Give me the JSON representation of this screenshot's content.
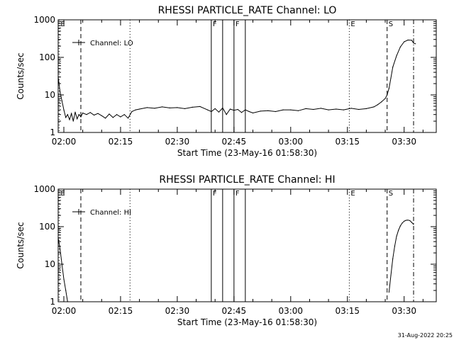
{
  "chart_data": [
    {
      "type": "line",
      "title": "RHESSI PARTICLE_RATE Channel: LO",
      "xlabel": "Start Time (23-May-16 01:58:30)",
      "ylabel": "Counts/sec",
      "yscale": "log",
      "ylim": [
        1,
        1000
      ],
      "xlim": [
        "01:58:30",
        "03:38:30"
      ],
      "xticks": [
        "02:00",
        "02:15",
        "02:30",
        "02:45",
        "03:00",
        "03:15",
        "03:30"
      ],
      "yticks": [
        "1",
        "10",
        "100",
        "1000"
      ],
      "legend": {
        "position": "top-left",
        "entries": [
          "Channel: LO"
        ]
      },
      "markers": [
        {
          "label": "E",
          "time": "01:58:45",
          "style": "dotted"
        },
        {
          "label": "",
          "time": "02:04:30",
          "style": "dashed"
        },
        {
          "label": "",
          "time": "02:17:30",
          "style": "dotted"
        },
        {
          "label": "F",
          "time": "02:39:00",
          "style": "solid"
        },
        {
          "label": "",
          "time": "02:42:00",
          "style": "solid"
        },
        {
          "label": "F",
          "time": "02:45:00",
          "style": "solid"
        },
        {
          "label": "",
          "time": "02:48:00",
          "style": "solid"
        },
        {
          "label": "E",
          "time": "03:15:30",
          "style": "dotted"
        },
        {
          "label": "S",
          "time": "03:25:30",
          "style": "dashed"
        },
        {
          "label": "",
          "time": "03:32:30",
          "style": "dashdot"
        }
      ],
      "series": [
        {
          "name": "Channel: LO",
          "points": [
            [
              "01:58:30",
              30
            ],
            [
              "01:59:00",
              12
            ],
            [
              "01:59:30",
              7
            ],
            [
              "02:00:00",
              4
            ],
            [
              "02:00:30",
              2.5
            ],
            [
              "02:01:00",
              3.0
            ],
            [
              "02:01:30",
              2.2
            ],
            [
              "02:02:00",
              3.2
            ],
            [
              "02:02:30",
              2.0
            ],
            [
              "02:03:00",
              3.5
            ],
            [
              "02:03:30",
              2.3
            ],
            [
              "02:04:00",
              3.0
            ],
            [
              "02:04:30",
              2.6
            ],
            [
              "02:05:00",
              3.3
            ],
            [
              "02:06:00",
              3.0
            ],
            [
              "02:07:00",
              3.4
            ],
            [
              "02:08:00",
              2.9
            ],
            [
              "02:09:00",
              3.2
            ],
            [
              "02:10:00",
              2.8
            ],
            [
              "02:11:00",
              2.4
            ],
            [
              "02:12:00",
              3.1
            ],
            [
              "02:13:00",
              2.5
            ],
            [
              "02:14:00",
              3.0
            ],
            [
              "02:15:00",
              2.6
            ],
            [
              "02:16:00",
              3.0
            ],
            [
              "02:17:00",
              2.4
            ],
            [
              "02:18:00",
              3.6
            ],
            [
              "02:19:00",
              4.0
            ],
            [
              "02:20:00",
              4.2
            ],
            [
              "02:22:00",
              4.6
            ],
            [
              "02:24:00",
              4.4
            ],
            [
              "02:26:00",
              4.8
            ],
            [
              "02:28:00",
              4.5
            ],
            [
              "02:30:00",
              4.6
            ],
            [
              "02:32:00",
              4.3
            ],
            [
              "02:34:00",
              4.7
            ],
            [
              "02:36:00",
              4.9
            ],
            [
              "02:38:00",
              4.0
            ],
            [
              "02:39:00",
              3.6
            ],
            [
              "02:40:00",
              4.3
            ],
            [
              "02:41:00",
              3.5
            ],
            [
              "02:42:00",
              4.5
            ],
            [
              "02:43:00",
              3.0
            ],
            [
              "02:44:00",
              4.2
            ],
            [
              "02:45:00",
              3.9
            ],
            [
              "02:46:00",
              4.1
            ],
            [
              "02:47:00",
              3.4
            ],
            [
              "02:48:00",
              4.0
            ],
            [
              "02:49:00",
              3.6
            ],
            [
              "02:50:00",
              3.3
            ],
            [
              "02:52:00",
              3.7
            ],
            [
              "02:54:00",
              3.8
            ],
            [
              "02:56:00",
              3.6
            ],
            [
              "02:58:00",
              4.0
            ],
            [
              "03:00:00",
              4.0
            ],
            [
              "03:02:00",
              3.8
            ],
            [
              "03:04:00",
              4.3
            ],
            [
              "03:06:00",
              4.1
            ],
            [
              "03:08:00",
              4.4
            ],
            [
              "03:10:00",
              4.0
            ],
            [
              "03:12:00",
              4.2
            ],
            [
              "03:14:00",
              4.0
            ],
            [
              "03:16:00",
              4.4
            ],
            [
              "03:18:00",
              4.1
            ],
            [
              "03:20:00",
              4.3
            ],
            [
              "03:22:00",
              4.8
            ],
            [
              "03:23:00",
              5.5
            ],
            [
              "03:24:00",
              6.5
            ],
            [
              "03:25:00",
              8.0
            ],
            [
              "03:25:30",
              10
            ],
            [
              "03:26:00",
              15
            ],
            [
              "03:26:30",
              28
            ],
            [
              "03:27:00",
              55
            ],
            [
              "03:28:00",
              110
            ],
            [
              "03:29:00",
              190
            ],
            [
              "03:30:00",
              260
            ],
            [
              "03:31:00",
              290
            ],
            [
              "03:32:00",
              285
            ],
            [
              "03:32:30",
              240
            ],
            [
              "03:33:00",
              230
            ]
          ]
        }
      ]
    },
    {
      "type": "line",
      "title": "RHESSI PARTICLE_RATE Channel: HI",
      "xlabel": "Start Time (23-May-16 01:58:30)",
      "ylabel": "Counts/sec",
      "yscale": "log",
      "ylim": [
        1,
        1000
      ],
      "xlim": [
        "01:58:30",
        "03:38:30"
      ],
      "xticks": [
        "02:00",
        "02:15",
        "02:30",
        "02:45",
        "03:00",
        "03:15",
        "03:30"
      ],
      "yticks": [
        "1",
        "10",
        "100",
        "1000"
      ],
      "legend": {
        "position": "top-left",
        "entries": [
          "Channel: HI"
        ]
      },
      "markers": [
        {
          "label": "E",
          "time": "01:58:45",
          "style": "dotted"
        },
        {
          "label": "",
          "time": "02:04:30",
          "style": "dashed"
        },
        {
          "label": "",
          "time": "02:17:30",
          "style": "dotted"
        },
        {
          "label": "F",
          "time": "02:39:00",
          "style": "solid"
        },
        {
          "label": "",
          "time": "02:42:00",
          "style": "solid"
        },
        {
          "label": "F",
          "time": "02:45:00",
          "style": "solid"
        },
        {
          "label": "",
          "time": "02:48:00",
          "style": "solid"
        },
        {
          "label": "E",
          "time": "03:15:30",
          "style": "dotted"
        },
        {
          "label": "S",
          "time": "03:25:30",
          "style": "dashed"
        },
        {
          "label": "",
          "time": "03:32:30",
          "style": "dashdot"
        }
      ],
      "series": [
        {
          "name": "Channel: HI",
          "points": [
            [
              "01:58:30",
              50
            ],
            [
              "01:59:00",
              25
            ],
            [
              "01:59:30",
              10
            ],
            [
              "02:00:00",
              4
            ],
            [
              "02:00:30",
              2.0
            ],
            [
              "02:01:00",
              1.0
            ]
          ]
        },
        {
          "name": "Channel: HI",
          "points": [
            [
              "03:26:00",
              1.8
            ],
            [
              "03:26:30",
              5
            ],
            [
              "03:27:00",
              14
            ],
            [
              "03:27:30",
              30
            ],
            [
              "03:28:00",
              55
            ],
            [
              "03:28:30",
              80
            ],
            [
              "03:29:00",
              105
            ],
            [
              "03:29:30",
              125
            ],
            [
              "03:30:00",
              140
            ],
            [
              "03:30:30",
              148
            ],
            [
              "03:31:00",
              150
            ],
            [
              "03:31:30",
              145
            ],
            [
              "03:32:00",
              130
            ],
            [
              "03:32:30",
              115
            ]
          ]
        }
      ]
    }
  ],
  "footer": {
    "timestamp": "31-Aug-2022 20:25"
  }
}
